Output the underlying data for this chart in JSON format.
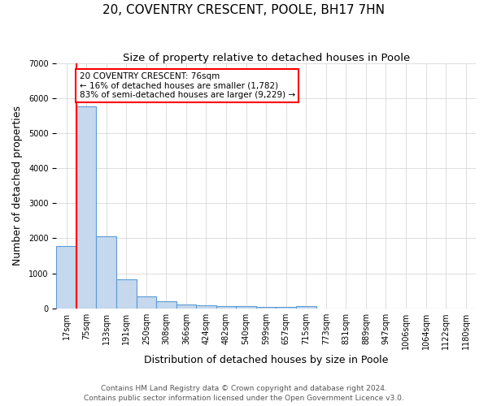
{
  "title": "20, COVENTRY CRESCENT, POOLE, BH17 7HN",
  "subtitle": "Size of property relative to detached houses in Poole",
  "xlabel": "Distribution of detached houses by size in Poole",
  "ylabel": "Number of detached properties",
  "categories": [
    "17sqm",
    "75sqm",
    "133sqm",
    "191sqm",
    "250sqm",
    "308sqm",
    "366sqm",
    "424sqm",
    "482sqm",
    "540sqm",
    "599sqm",
    "657sqm",
    "715sqm",
    "773sqm",
    "831sqm",
    "889sqm",
    "947sqm",
    "1006sqm",
    "1064sqm",
    "1122sqm",
    "1180sqm"
  ],
  "values": [
    1782,
    5780,
    2060,
    820,
    340,
    200,
    110,
    80,
    70,
    55,
    45,
    35,
    55,
    0,
    0,
    0,
    0,
    0,
    0,
    0,
    0
  ],
  "bar_color": "#c5d8ed",
  "bar_edge_color": "#5b9bd5",
  "vline_x": 0.5,
  "annotation_text": "20 COVENTRY CRESCENT: 76sqm\n← 16% of detached houses are smaller (1,782)\n83% of semi-detached houses are larger (9,229) →",
  "annotation_box_color": "white",
  "annotation_box_edge": "red",
  "vline_color": "red",
  "grid_color": "#d0d0d0",
  "background_color": "white",
  "footer_line1": "Contains HM Land Registry data © Crown copyright and database right 2024.",
  "footer_line2": "Contains public sector information licensed under the Open Government Licence v3.0.",
  "ylim": [
    0,
    7000
  ],
  "title_fontsize": 11,
  "subtitle_fontsize": 9.5,
  "axis_label_fontsize": 9,
  "tick_fontsize": 7,
  "footer_fontsize": 6.5,
  "annotation_fontsize": 7.5
}
